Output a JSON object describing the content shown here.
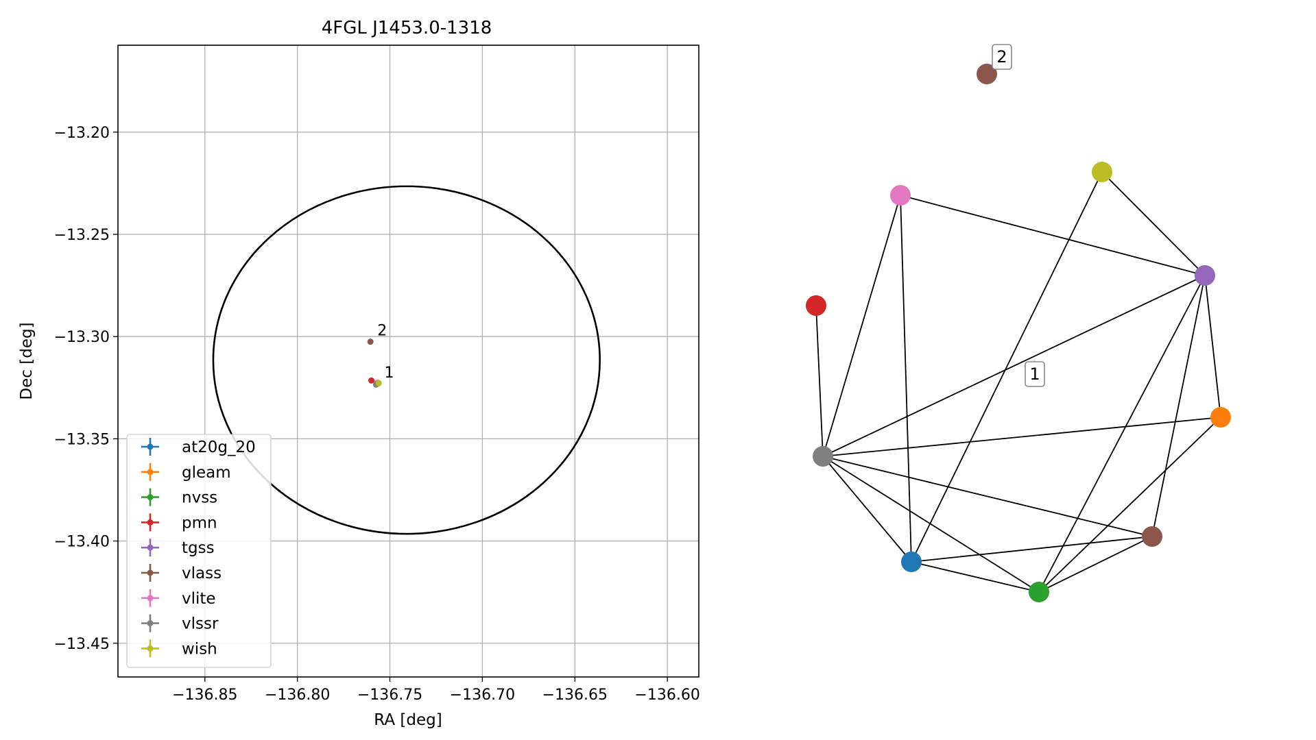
{
  "chart_data": [
    {
      "type": "scatter",
      "title": "4FGL J1453.0-1318",
      "xlabel": "RA [deg]",
      "ylabel": "Dec [deg]",
      "xlim": [
        -136.897,
        -136.583
      ],
      "ylim": [
        -13.4665,
        -13.1575
      ],
      "grid": true,
      "x_ticks": [
        -136.85,
        -136.8,
        -136.75,
        -136.7,
        -136.65,
        -136.6
      ],
      "x_tick_labels": [
        "−136.85",
        "−136.80",
        "−136.75",
        "−136.70",
        "−136.65",
        "−136.60"
      ],
      "y_ticks": [
        -13.2,
        -13.25,
        -13.3,
        -13.35,
        -13.4,
        -13.45
      ],
      "y_tick_labels": [
        "−13.20",
        "−13.25",
        "−13.30",
        "−13.35",
        "−13.40",
        "−13.45"
      ],
      "ellipse": {
        "center": [
          -136.741,
          -13.3115
        ],
        "semi_major_ra": 0.1045,
        "semi_minor_dec": 0.085,
        "color": "#000000"
      },
      "legend_position": "lower-left",
      "series": [
        {
          "name": "at20g_20",
          "color": "#1f77b4",
          "points": [
            {
              "x": -136.757,
              "y": -13.3232
            }
          ]
        },
        {
          "name": "gleam",
          "color": "#ff7f0e",
          "points": [
            {
              "x": -136.7565,
              "y": -13.3225
            }
          ]
        },
        {
          "name": "nvss",
          "color": "#2ca02c",
          "points": [
            {
              "x": -136.7568,
              "y": -13.323
            }
          ]
        },
        {
          "name": "pmn",
          "color": "#d62728",
          "points": [
            {
              "x": -136.76,
              "y": -13.3215
            }
          ]
        },
        {
          "name": "tgss",
          "color": "#9467bd",
          "points": [
            {
              "x": -136.7572,
              "y": -13.3228
            }
          ]
        },
        {
          "name": "vlass",
          "color": "#8c564b",
          "points": [
            {
              "x": -136.7605,
              "y": -13.3025
            },
            {
              "x": -136.7567,
              "y": -13.3231
            }
          ]
        },
        {
          "name": "vlite",
          "color": "#e377c2",
          "points": [
            {
              "x": -136.7566,
              "y": -13.3227
            }
          ]
        },
        {
          "name": "vlssr",
          "color": "#7f7f7f",
          "points": [
            {
              "x": -136.7575,
              "y": -13.3235
            }
          ]
        },
        {
          "name": "wish",
          "color": "#bcbd22",
          "points": [
            {
              "x": -136.756,
              "y": -13.3228
            }
          ]
        }
      ],
      "annotations": [
        {
          "text": "2",
          "x": -136.7605,
          "y": -13.3025
        },
        {
          "text": "1",
          "x": -136.7567,
          "y": -13.3231
        }
      ]
    },
    {
      "type": "network",
      "nodes": [
        {
          "id": "vlass_2",
          "color": "#8c564b"
        },
        {
          "id": "wish",
          "color": "#bcbd22"
        },
        {
          "id": "vlite",
          "color": "#e377c2"
        },
        {
          "id": "tgss",
          "color": "#9467bd"
        },
        {
          "id": "pmn",
          "color": "#d62728"
        },
        {
          "id": "gleam",
          "color": "#ff7f0e"
        },
        {
          "id": "vlssr",
          "color": "#7f7f7f"
        },
        {
          "id": "vlass_1",
          "color": "#8c564b"
        },
        {
          "id": "at20g_20",
          "color": "#1f77b4"
        },
        {
          "id": "nvss",
          "color": "#2ca02c"
        }
      ],
      "edges": [
        [
          "vlite",
          "tgss"
        ],
        [
          "vlite",
          "vlssr"
        ],
        [
          "vlite",
          "at20g_20"
        ],
        [
          "wish",
          "tgss"
        ],
        [
          "wish",
          "at20g_20"
        ],
        [
          "pmn",
          "vlssr"
        ],
        [
          "tgss",
          "vlssr"
        ],
        [
          "tgss",
          "gleam"
        ],
        [
          "tgss",
          "vlass_1"
        ],
        [
          "tgss",
          "nvss"
        ],
        [
          "gleam",
          "vlssr"
        ],
        [
          "gleam",
          "nvss"
        ],
        [
          "vlssr",
          "at20g_20"
        ],
        [
          "vlssr",
          "nvss"
        ],
        [
          "vlssr",
          "vlass_1"
        ],
        [
          "at20g_20",
          "vlass_1"
        ],
        [
          "at20g_20",
          "nvss"
        ],
        [
          "nvss",
          "vlass_1"
        ]
      ],
      "labels": [
        {
          "text": "2"
        },
        {
          "text": "1"
        }
      ]
    }
  ]
}
